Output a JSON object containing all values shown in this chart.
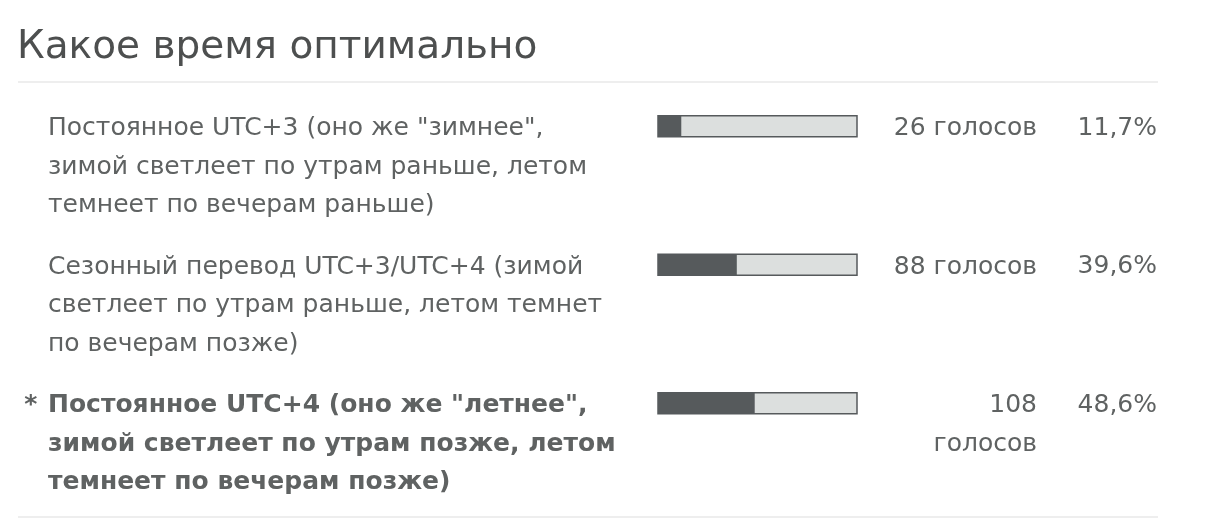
{
  "chart_data": {
    "type": "bar",
    "orientation": "horizontal",
    "title": "Какое время оптимально",
    "categories": [
      "Постоянное UTC+3 (оно же \"зимнее\", зимой светлеет по утрам раньше, летом темнеет по вечерам раньше)",
      "Сезонный перевод UTC+3/UTC+4 (зимой светлеет по утрам раньше, летом темнет по вечерам позже)",
      "* Постоянное UTC+4 (оно же \"летнее\", зимой светлеет по утрам позже, летом темнеет по вечерам позже)"
    ],
    "values": [
      11.7,
      39.6,
      48.6
    ],
    "value_labels": [
      "11,7%",
      "39,6%",
      "48,6%"
    ],
    "color": "#565a5c",
    "xlim": [
      0,
      100
    ],
    "tick_labels": "y",
    "annotations": [
      "26 голосов",
      "88 голосов",
      "108 голосов"
    ]
  }
}
